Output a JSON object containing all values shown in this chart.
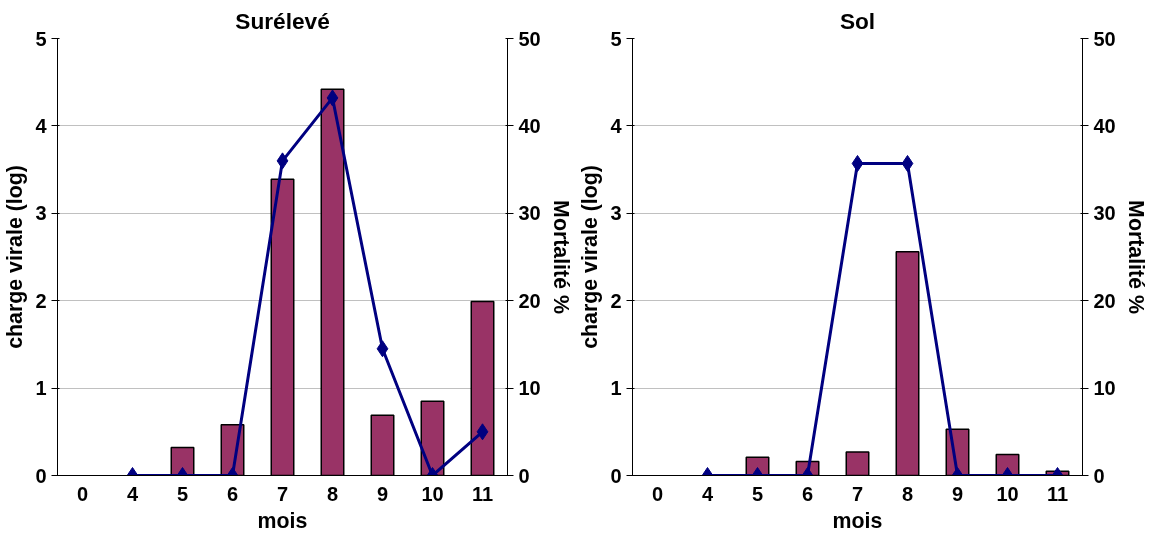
{
  "chart_data": [
    {
      "type": "bar",
      "title": "Surélevé",
      "xlabel": "mois",
      "ylabel": "charge virale (log)",
      "y2label": "Mortalité %",
      "categories": [
        "0",
        "4",
        "5",
        "6",
        "7",
        "8",
        "9",
        "10",
        "11"
      ],
      "ylim": [
        0,
        5
      ],
      "yticks": [
        0,
        1,
        2,
        3,
        4,
        5
      ],
      "y2lim": [
        0,
        50
      ],
      "y2ticks": [
        0,
        10,
        20,
        30,
        40,
        50
      ],
      "grid": "y",
      "series": [
        {
          "color": "#993366",
          "values": [
            null,
            null,
            0.32,
            0.58,
            3.39,
            4.42,
            0.69,
            0.85,
            1.99
          ]
        },
        {
          "type": "line",
          "axis": "y2",
          "color": "#000080",
          "marker": "diamond",
          "line_style": "solid",
          "values": [
            null,
            0,
            0,
            0,
            36,
            43.2,
            14.5,
            0,
            5
          ]
        }
      ]
    },
    {
      "type": "bar",
      "title": "Sol",
      "xlabel": "mois",
      "ylabel": "charge virale (log)",
      "y2label": "Mortalité %",
      "categories": [
        "0",
        "4",
        "5",
        "6",
        "7",
        "8",
        "9",
        "10",
        "11"
      ],
      "ylim": [
        0,
        5
      ],
      "yticks": [
        0,
        1,
        2,
        3,
        4,
        5
      ],
      "y2lim": [
        0,
        50
      ],
      "y2ticks": [
        0,
        10,
        20,
        30,
        40,
        50
      ],
      "grid": "y",
      "series": [
        {
          "color": "#993366",
          "values": [
            null,
            null,
            0.21,
            0.16,
            0.27,
            2.56,
            0.53,
            0.24,
            0.05
          ]
        },
        {
          "type": "line",
          "axis": "y2",
          "color": "#000080",
          "marker": "diamond",
          "line_style": "solid",
          "values": [
            null,
            0,
            0,
            0,
            35.7,
            35.7,
            0,
            0,
            0
          ]
        }
      ]
    }
  ]
}
